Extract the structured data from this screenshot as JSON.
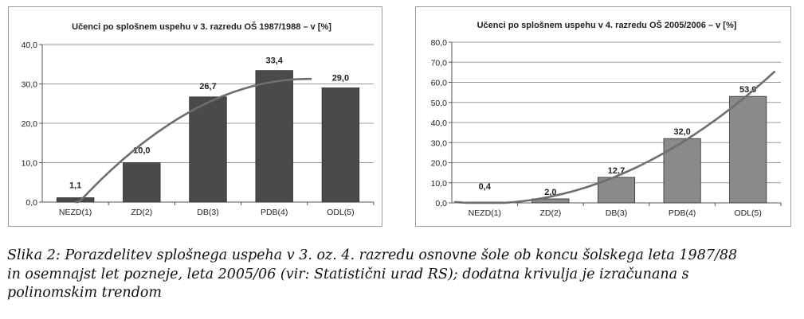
{
  "chart_data": [
    {
      "type": "bar",
      "title": "Učenci po splošnem uspehu v 3. razredu OŠ 1987/1988  –  v [%]",
      "categories": [
        "NEZD(1)",
        "ZD(2)",
        "DB(3)",
        "PDB(4)",
        "ODL(5)"
      ],
      "values": [
        1.1,
        10.0,
        26.7,
        33.4,
        29.0
      ],
      "value_labels": [
        "1,1",
        "10,0",
        "26,7",
        "33,4",
        "29,0"
      ],
      "yticks": [
        0,
        10,
        20,
        30,
        40
      ],
      "ytick_labels": [
        "0,0",
        "10,0",
        "20,0",
        "30,0",
        "40,0"
      ],
      "ylim": [
        0,
        40
      ],
      "trend": "polynomial",
      "grid": "horizontal",
      "bar_color": "#4a4a4a"
    },
    {
      "type": "bar",
      "title": "Učenci po splošnem uspehu v 4. razredu OŠ 2005/2006  –  v [%]",
      "categories": [
        "NEZD(1)",
        "ZD(2)",
        "DB(3)",
        "PDB(4)",
        "ODL(5)"
      ],
      "values": [
        0.4,
        2.0,
        12.7,
        32.0,
        53.0
      ],
      "value_labels": [
        "0,4",
        "2,0",
        "12,7",
        "32,0",
        "53,0"
      ],
      "yticks": [
        0,
        10,
        20,
        30,
        40,
        50,
        60,
        70,
        80
      ],
      "ytick_labels": [
        "0,0",
        "10,0",
        "20,0",
        "30,0",
        "40,0",
        "50,0",
        "60,0",
        "70,0",
        "80,0"
      ],
      "ylim": [
        0,
        80
      ],
      "trend": "polynomial",
      "grid": "horizontal",
      "bar_color": "#8a8a8a"
    }
  ],
  "caption": {
    "line1": "Slika 2: Porazdelitev splošnega uspeha v 3. oz. 4. razredu osnovne šole ob koncu šolskega leta 1987/88",
    "line2": "in osemnajst let pozneje, leta 2005/06 (vir: Statistični urad RS); dodatna krivulja je izračunana s",
    "line3": "polinomskim trendom"
  }
}
